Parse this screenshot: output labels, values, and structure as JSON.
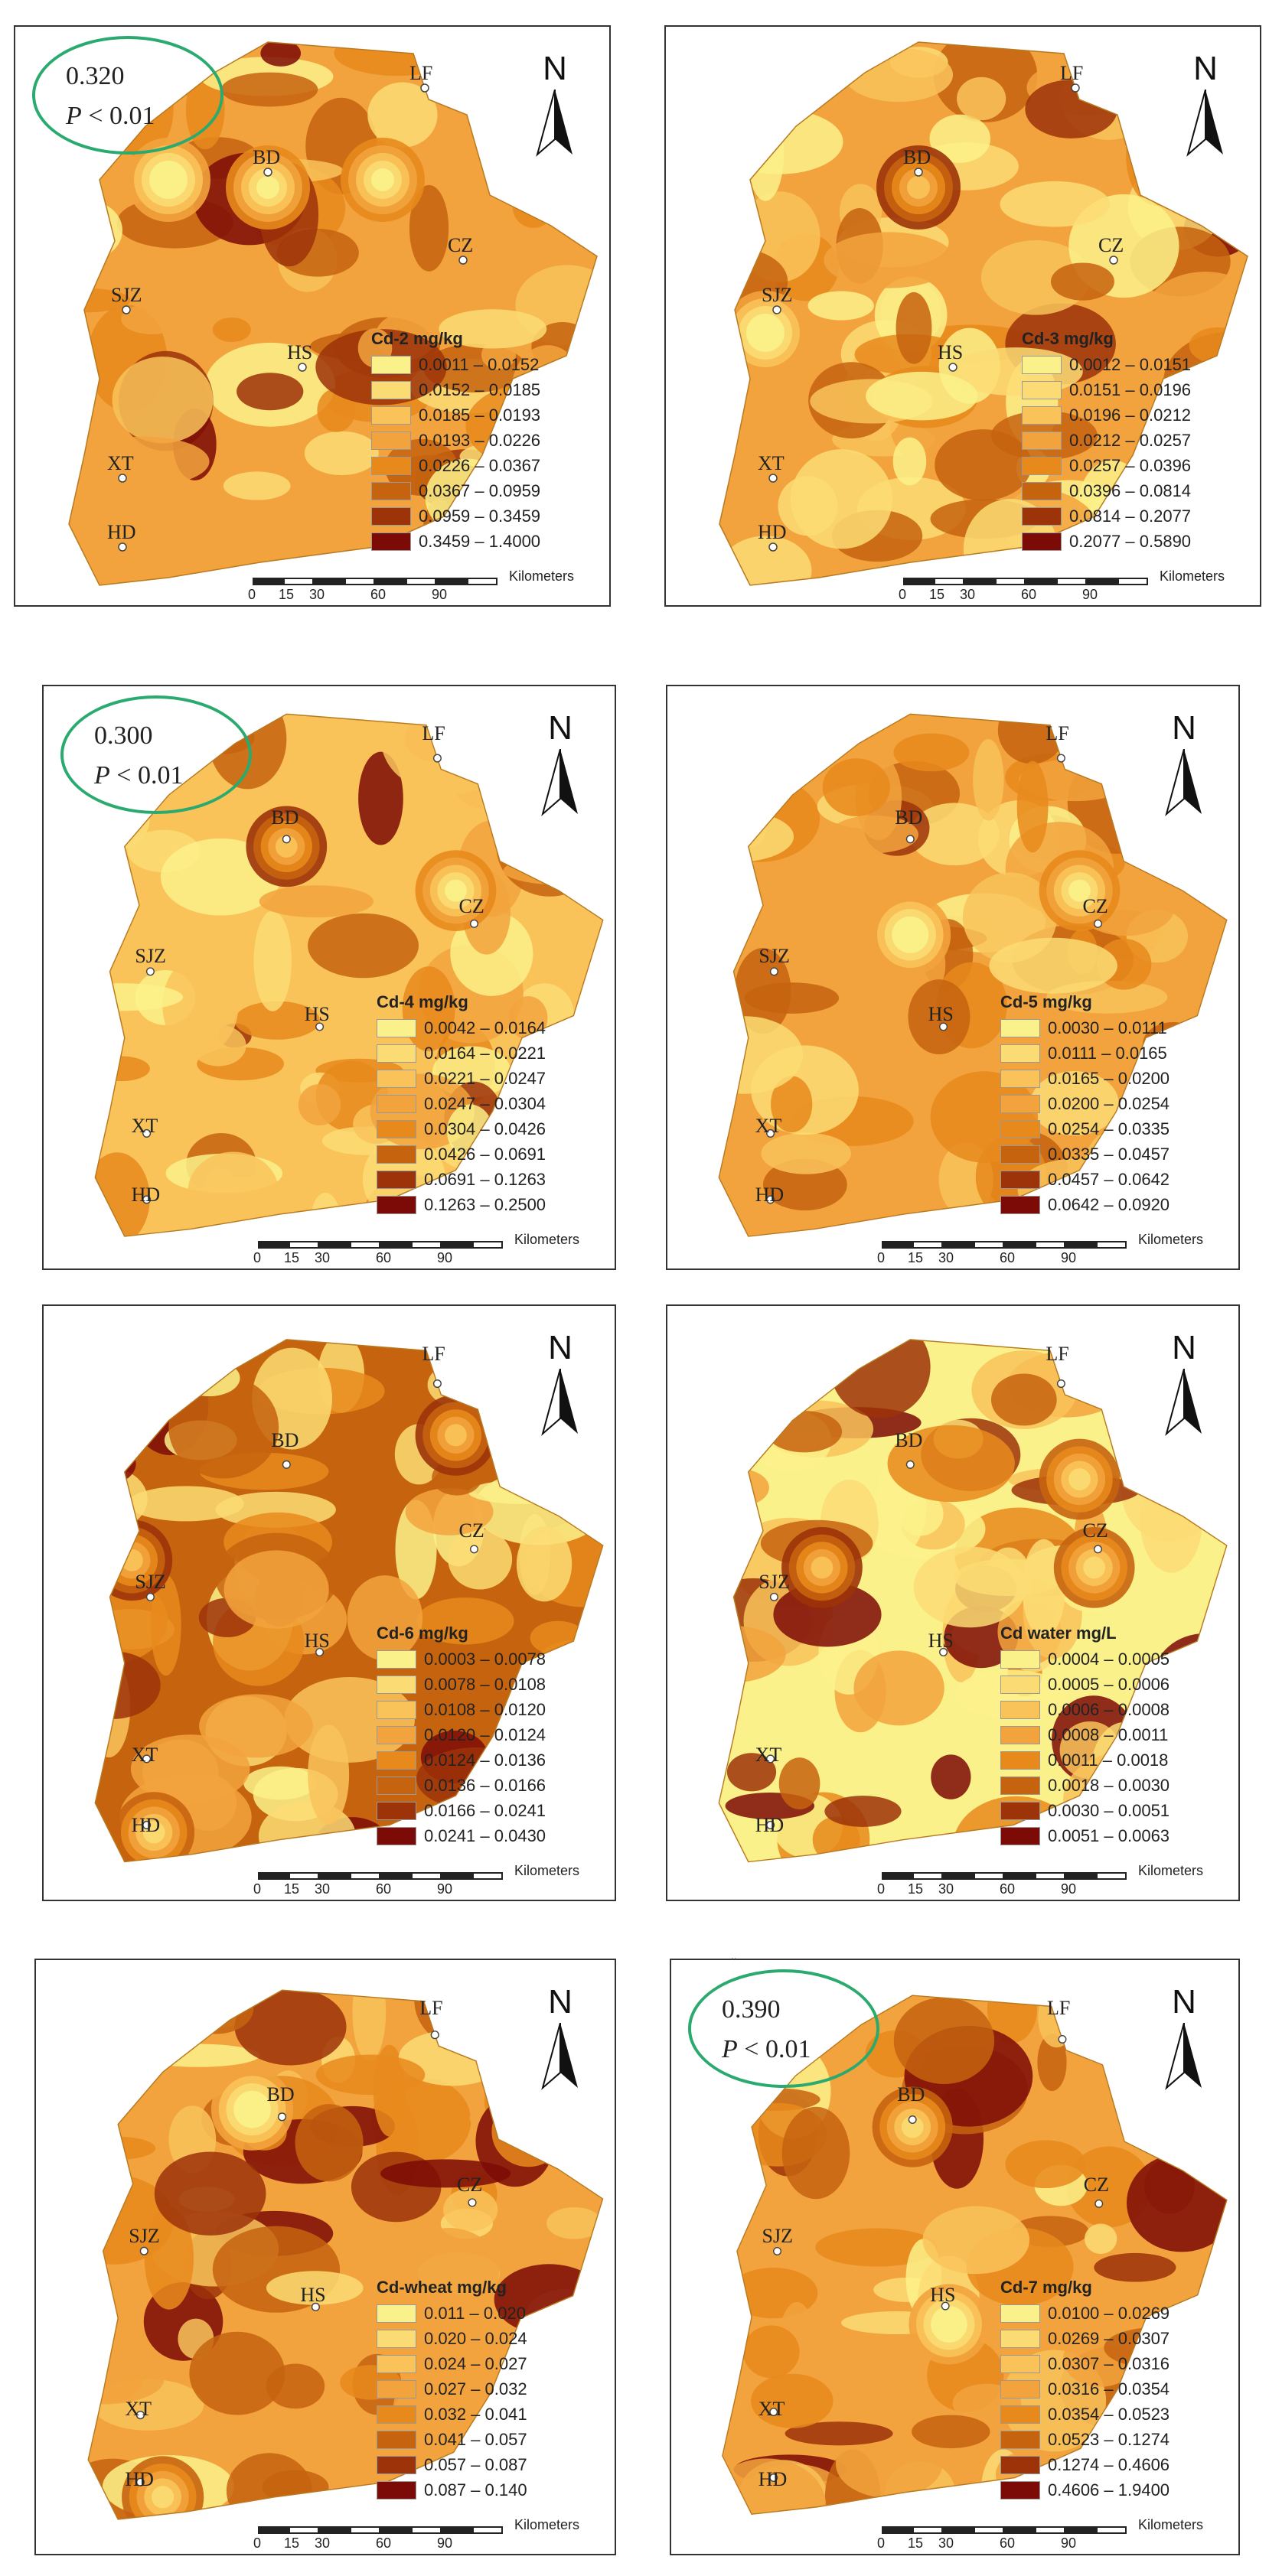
{
  "colors": {
    "c1": "#fbf18a",
    "c2": "#fbdc74",
    "c3": "#f9c35a",
    "c4": "#f2a33d",
    "c5": "#e8891c",
    "c6": "#c6630f",
    "c7": "#9c3309",
    "c8": "#7c0a06",
    "stat_ring": "#2aaa6e"
  },
  "north_label": "N",
  "scale_bar": {
    "ticks": [
      "0",
      "15",
      "30",
      "60",
      "90"
    ],
    "unit": "Kilometers"
  },
  "cities": [
    "LF",
    "BD",
    "CZ",
    "SJZ",
    "HS",
    "XT",
    "HD"
  ],
  "panels": [
    {
      "id": "cd2",
      "legend_title": "Cd-2 mg/kg",
      "stat": {
        "value": "0.320",
        "p_text": "P < 0.01"
      },
      "classes": [
        "0.0011 – 0.0152",
        "0.0152 – 0.0185",
        "0.0185 – 0.0193",
        "0.0193 – 0.0226",
        "0.0226 – 0.0367",
        "0.0367 – 0.0959",
        "0.0959 – 0.3459",
        "0.3459 – 1.4000"
      ]
    },
    {
      "id": "cd3",
      "legend_title": "Cd-3 mg/kg",
      "stat": null,
      "classes": [
        "0.0012 – 0.0151",
        "0.0151 – 0.0196",
        "0.0196 – 0.0212",
        "0.0212 – 0.0257",
        "0.0257 – 0.0396",
        "0.0396 – 0.0814",
        "0.0814 – 0.2077",
        "0.2077 – 0.5890"
      ]
    },
    {
      "id": "cd4",
      "legend_title": "Cd-4 mg/kg",
      "stat": {
        "value": "0.300",
        "p_text": "P < 0.01"
      },
      "classes": [
        "0.0042 – 0.0164",
        "0.0164 – 0.0221",
        "0.0221 – 0.0247",
        "0.0247 – 0.0304",
        "0.0304 – 0.0426",
        "0.0426 – 0.0691",
        "0.0691 – 0.1263",
        "0.1263 – 0.2500"
      ]
    },
    {
      "id": "cd5",
      "legend_title": "Cd-5 mg/kg",
      "stat": null,
      "classes": [
        "0.0030 – 0.0111",
        "0.0111 – 0.0165",
        "0.0165 – 0.0200",
        "0.0200 – 0.0254",
        "0.0254 – 0.0335",
        "0.0335 – 0.0457",
        "0.0457 – 0.0642",
        "0.0642 – 0.0920"
      ]
    },
    {
      "id": "cd6",
      "legend_title": "Cd-6 mg/kg",
      "stat": null,
      "classes": [
        "0.0003 – 0.0078",
        "0.0078 – 0.0108",
        "0.0108 – 0.0120",
        "0.0120 – 0.0124",
        "0.0124 – 0.0136",
        "0.0136 – 0.0166",
        "0.0166 – 0.0241",
        "0.0241 – 0.0430"
      ]
    },
    {
      "id": "cdwater",
      "legend_title": "Cd water mg/L",
      "stat": null,
      "classes": [
        "0.0004 – 0.0005",
        "0.0005 – 0.0006",
        "0.0006 – 0.0008",
        "0.0008 – 0.0011",
        "0.0011 – 0.0018",
        "0.0018 – 0.0030",
        "0.0030 – 0.0051",
        "0.0051 – 0.0063"
      ]
    },
    {
      "id": "cdwheat",
      "legend_title": "Cd-wheat  mg/kg",
      "stat": null,
      "classes": [
        "0.011 – 0.020",
        "0.020 – 0.024",
        "0.024 – 0.027",
        "0.027 – 0.032",
        "0.032 – 0.041",
        "0.041 – 0.057",
        "0.057 – 0.087",
        "0.087 – 0.140"
      ]
    },
    {
      "id": "cd7",
      "legend_title": "Cd-7 mg/kg",
      "stat": {
        "value": "0.390",
        "p_text": "P < 0.01"
      },
      "classes": [
        "0.0100 – 0.0269",
        "0.0269 – 0.0307",
        "0.0307 – 0.0316",
        "0.0316 – 0.0354",
        "0.0354 – 0.0523",
        "0.0523 – 0.1274",
        "0.1274 – 0.4606",
        "0.4606 – 1.9400"
      ]
    }
  ],
  "separator_mark": ".."
}
